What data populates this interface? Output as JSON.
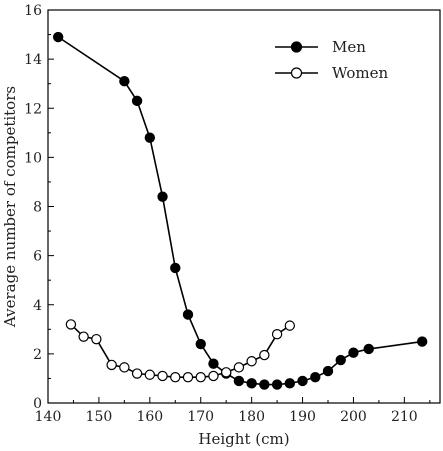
{
  "chart_data": {
    "type": "line",
    "xlabel": "Height (cm)",
    "ylabel": "Average number of competitors",
    "xlim": [
      140,
      217
    ],
    "ylim": [
      0,
      16
    ],
    "xticks": [
      140,
      150,
      160,
      170,
      180,
      190,
      200,
      210
    ],
    "yticks": [
      0,
      2,
      4,
      6,
      8,
      10,
      12,
      14,
      16
    ],
    "grid": false,
    "legend_position": "top-right",
    "series": [
      {
        "name": "Men",
        "marker": "filled-circle",
        "color": "#000000",
        "x": [
          142,
          155,
          157.5,
          160,
          162.5,
          165,
          167.5,
          170,
          172.5,
          175,
          177.5,
          180,
          182.5,
          185,
          187.5,
          190,
          192.5,
          195,
          197.5,
          200,
          203,
          213.5
        ],
        "y": [
          14.9,
          13.1,
          12.3,
          10.8,
          8.4,
          5.5,
          3.6,
          2.4,
          1.6,
          1.2,
          0.9,
          0.8,
          0.75,
          0.75,
          0.8,
          0.9,
          1.05,
          1.3,
          1.75,
          2.05,
          2.2,
          2.5
        ]
      },
      {
        "name": "Women",
        "marker": "open-circle",
        "color": "#000000",
        "x": [
          144.5,
          147,
          149.5,
          152.5,
          155,
          157.5,
          160,
          162.5,
          165,
          167.5,
          170,
          172.5,
          175,
          177.5,
          180,
          182.5,
          185,
          187.5
        ],
        "y": [
          3.2,
          2.7,
          2.6,
          1.55,
          1.45,
          1.2,
          1.15,
          1.1,
          1.05,
          1.05,
          1.05,
          1.1,
          1.25,
          1.45,
          1.7,
          1.95,
          2.8,
          3.15
        ]
      }
    ]
  }
}
